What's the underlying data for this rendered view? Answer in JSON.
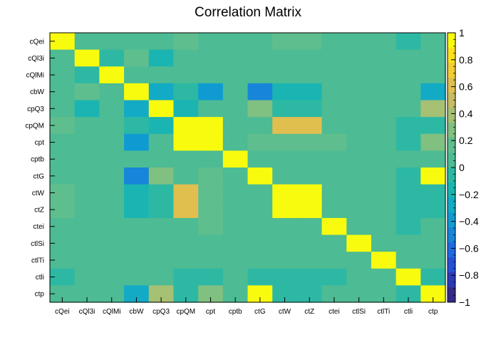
{
  "chart_data": {
    "type": "heatmap",
    "title": "Correlation Matrix",
    "labels": [
      "cQei",
      "cQl3i",
      "cQlMi",
      "cbW",
      "cpQ3",
      "cpQM",
      "cpt",
      "cptb",
      "ctG",
      "ctW",
      "ctZ",
      "ctei",
      "ctlSi",
      "ctlTi",
      "ctli",
      "ctp"
    ],
    "zlim": [
      -1,
      1
    ],
    "colorbar_ticks": [
      1,
      0.8,
      0.6,
      0.4,
      0.2,
      0,
      -0.2,
      -0.4,
      -0.6,
      -0.8,
      -1
    ],
    "colorbar_tick_labels": [
      "1",
      "0.8",
      "0.6",
      "0.4",
      "0.2",
      "0",
      "−0.2",
      "−0.4",
      "−0.6",
      "−0.8",
      "−1"
    ],
    "colorbar_position": "right",
    "colorscale": [
      "#352a87",
      "#2e39b7",
      "#2651d5",
      "#1f6ae3",
      "#1785d9",
      "#0f9bd2",
      "#13aac6",
      "#1ab5b2",
      "#2db8a4",
      "#4dbb93",
      "#5fbe8e",
      "#80c080",
      "#a6c074",
      "#c6bc64",
      "#e0bf4f",
      "#f1cd35",
      "#fbe11b",
      "#f9fb0e"
    ],
    "values": [
      [
        1.0,
        0.05,
        0.0,
        0.0,
        0.0,
        0.15,
        0.05,
        0.0,
        0.05,
        0.15,
        0.15,
        0.05,
        0.05,
        0.05,
        -0.05,
        0.05
      ],
      [
        0.05,
        1.0,
        -0.1,
        0.15,
        -0.2,
        0.05,
        0.0,
        0.05,
        0.05,
        0.05,
        0.05,
        0.0,
        0.05,
        0.05,
        0.05,
        0.05
      ],
      [
        0.0,
        -0.1,
        1.0,
        0.05,
        0.05,
        0.0,
        0.0,
        0.05,
        0.05,
        0.0,
        0.0,
        0.0,
        0.05,
        0.05,
        0.05,
        0.05
      ],
      [
        0.0,
        0.15,
        0.05,
        1.0,
        -0.25,
        -0.1,
        -0.35,
        0.05,
        -0.45,
        -0.2,
        -0.2,
        0.0,
        0.05,
        0.0,
        0.05,
        -0.3
      ],
      [
        0.0,
        -0.2,
        0.05,
        -0.25,
        1.0,
        -0.2,
        0.0,
        0.0,
        0.25,
        -0.1,
        -0.1,
        0.0,
        0.05,
        0.05,
        0.05,
        0.35
      ],
      [
        0.15,
        0.05,
        0.0,
        -0.1,
        -0.2,
        1.0,
        0.9,
        0.0,
        0.0,
        0.6,
        0.6,
        0.05,
        0.05,
        0.05,
        -0.1,
        -0.05
      ],
      [
        0.05,
        0.0,
        0.0,
        -0.35,
        0.0,
        0.9,
        1.0,
        0.05,
        0.2,
        0.2,
        0.2,
        0.15,
        0.05,
        0.05,
        -0.1,
        0.3
      ],
      [
        0.0,
        0.05,
        0.05,
        0.05,
        0.0,
        0.0,
        0.05,
        1.0,
        0.05,
        0.0,
        0.0,
        0.05,
        0.05,
        0.05,
        0.05,
        0.05
      ],
      [
        0.05,
        0.05,
        0.05,
        -0.45,
        0.25,
        0.0,
        0.2,
        0.05,
        1.0,
        0.0,
        0.05,
        0.05,
        0.05,
        0.05,
        -0.05,
        0.95
      ],
      [
        0.15,
        0.05,
        0.0,
        -0.2,
        -0.1,
        0.6,
        0.2,
        0.0,
        0.0,
        1.0,
        1.0,
        0.05,
        0.05,
        0.05,
        -0.05,
        -0.1
      ],
      [
        0.15,
        0.05,
        0.0,
        -0.2,
        -0.1,
        0.6,
        0.2,
        0.0,
        0.05,
        1.0,
        1.0,
        0.05,
        0.05,
        0.05,
        -0.05,
        -0.1
      ],
      [
        0.05,
        0.0,
        0.0,
        0.0,
        0.0,
        0.05,
        0.15,
        0.05,
        0.05,
        0.05,
        0.05,
        1.0,
        0.05,
        0.05,
        -0.05,
        0.05
      ],
      [
        0.05,
        0.05,
        0.05,
        0.05,
        0.05,
        0.05,
        0.05,
        0.05,
        0.05,
        0.05,
        0.05,
        0.05,
        1.0,
        0.05,
        0.05,
        0.05
      ],
      [
        0.05,
        0.05,
        0.05,
        0.0,
        0.05,
        0.05,
        0.05,
        0.05,
        0.05,
        0.05,
        0.05,
        0.05,
        0.05,
        1.0,
        0.05,
        0.05
      ],
      [
        -0.05,
        0.05,
        0.05,
        0.05,
        0.05,
        -0.1,
        -0.1,
        0.05,
        -0.05,
        -0.05,
        -0.05,
        -0.05,
        0.05,
        0.05,
        1.0,
        -0.05
      ],
      [
        0.05,
        0.05,
        0.05,
        -0.3,
        0.35,
        -0.05,
        0.3,
        0.05,
        0.95,
        -0.1,
        -0.1,
        0.05,
        0.05,
        0.05,
        -0.05,
        1.0
      ]
    ]
  }
}
